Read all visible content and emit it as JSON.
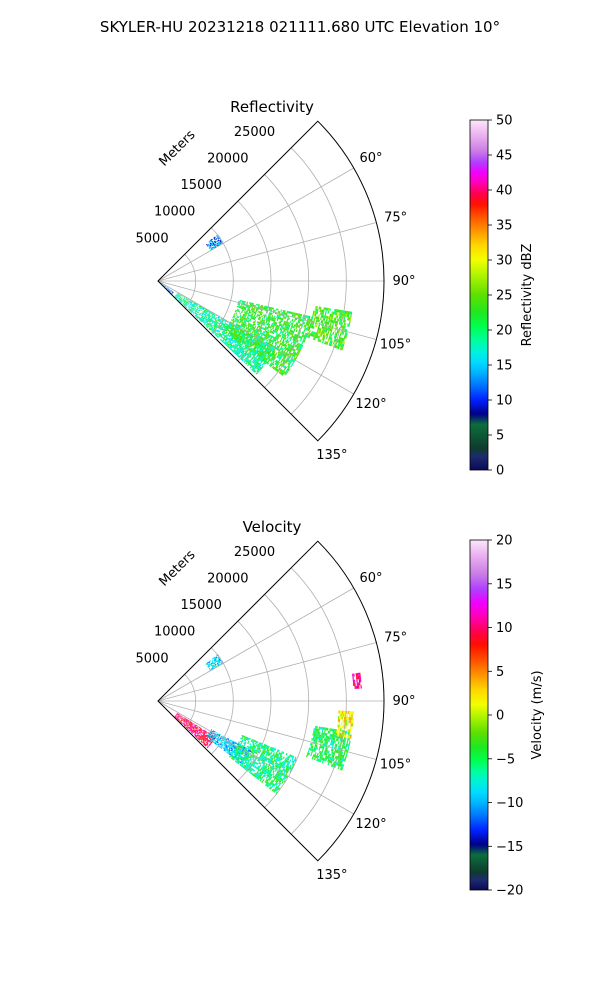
{
  "suptitle": "SKYLER-HU  20231218  021111.680 UTC Elevation 10°",
  "chart_data": [
    {
      "type": "heatmap",
      "projection": "polar-sector",
      "title": "Reflectivity",
      "radial_label": "Meters",
      "radial_ticks": [
        5000,
        10000,
        15000,
        20000,
        25000
      ],
      "radial_tick_labels": [
        "5000",
        "10000",
        "15000",
        "20000",
        "25000"
      ],
      "rlim": [
        0,
        30000
      ],
      "theta_ticks": [
        60,
        75,
        90,
        105,
        120,
        135
      ],
      "theta_tick_labels": [
        "60°",
        "75°",
        "90°",
        "105°",
        "120°",
        "135°"
      ],
      "theta_range": [
        45,
        135
      ],
      "grid": true,
      "colorbar": {
        "label": "Reflectivity dBZ",
        "range": [
          0,
          50
        ],
        "ticks": [
          "0",
          "5",
          "10",
          "15",
          "20",
          "25",
          "30",
          "35",
          "40",
          "45",
          "50"
        ],
        "placement": "right"
      },
      "echo_regions": [
        {
          "azimuth": [
            120,
            133
          ],
          "range_m": [
            3000,
            18000
          ],
          "value_dBZ": 16
        },
        {
          "azimuth": [
            103,
            127
          ],
          "range_m": [
            11000,
            21000
          ],
          "value_dBZ": 19
        },
        {
          "azimuth": [
            99,
            110
          ],
          "range_m": [
            21000,
            26000
          ],
          "value_dBZ": 20
        },
        {
          "azimuth": [
            52,
            60
          ],
          "range_m": [
            8000,
            10000
          ],
          "value_dBZ": 10
        },
        {
          "azimuth": [
            125,
            135
          ],
          "range_m": [
            0,
            2500
          ],
          "value_dBZ": 10
        }
      ]
    },
    {
      "type": "heatmap",
      "projection": "polar-sector",
      "title": "Velocity",
      "radial_label": "Meters",
      "radial_ticks": [
        5000,
        10000,
        15000,
        20000,
        25000
      ],
      "radial_tick_labels": [
        "5000",
        "10000",
        "15000",
        "20000",
        "25000"
      ],
      "rlim": [
        0,
        30000
      ],
      "theta_ticks": [
        60,
        75,
        90,
        105,
        120,
        135
      ],
      "theta_tick_labels": [
        "60°",
        "75°",
        "90°",
        "105°",
        "120°",
        "135°"
      ],
      "theta_range": [
        45,
        135
      ],
      "grid": true,
      "colorbar": {
        "label": "Velocity (m/s)",
        "range": [
          -20,
          20
        ],
        "ticks": [
          "−20",
          "−15",
          "−10",
          "−5",
          "0",
          "5",
          "10",
          "15",
          "20"
        ],
        "placement": "right"
      },
      "echo_regions": [
        {
          "azimuth": [
            122,
            133
          ],
          "range_m": [
            3000,
            9000
          ],
          "value_ms": 12
        },
        {
          "azimuth": [
            118,
            127
          ],
          "range_m": [
            8000,
            14000
          ],
          "value_ms": -11
        },
        {
          "azimuth": [
            112,
            128
          ],
          "range_m": [
            12000,
            20000
          ],
          "value_ms": -7
        },
        {
          "azimuth": [
            99,
            110
          ],
          "range_m": [
            21000,
            26000
          ],
          "value_ms": -6
        },
        {
          "azimuth": [
            93,
            101
          ],
          "range_m": [
            24000,
            26000
          ],
          "value_ms": 2
        },
        {
          "azimuth": [
            52,
            60
          ],
          "range_m": [
            8000,
            10000
          ],
          "value_ms": -10
        },
        {
          "azimuth": [
            82,
            86
          ],
          "range_m": [
            26000,
            27000
          ],
          "value_ms": 13
        }
      ]
    }
  ]
}
